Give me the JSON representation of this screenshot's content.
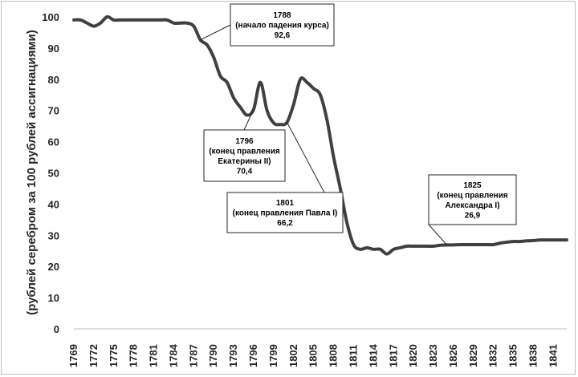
{
  "chart_data": {
    "type": "line",
    "ylabel": "(рублей серебром за 100 рублей ассигнациями)",
    "ylim": [
      0,
      100
    ],
    "yticks": [
      0,
      10,
      20,
      30,
      40,
      50,
      60,
      70,
      80,
      90,
      100
    ],
    "xlim": [
      1769,
      1843
    ],
    "xticks": [
      1769,
      1772,
      1775,
      1778,
      1781,
      1784,
      1787,
      1790,
      1793,
      1796,
      1799,
      1802,
      1805,
      1808,
      1811,
      1814,
      1817,
      1820,
      1823,
      1826,
      1829,
      1832,
      1835,
      1838,
      1841
    ],
    "grid": false,
    "legend": "none",
    "line_color": "#404040",
    "series": [
      {
        "x": [
          1769,
          1770,
          1771,
          1772,
          1773,
          1774,
          1775,
          1776,
          1777,
          1778,
          1779,
          1780,
          1781,
          1782,
          1783,
          1784,
          1785,
          1786,
          1787,
          1788,
          1789,
          1790,
          1791,
          1792,
          1793,
          1794,
          1795,
          1796,
          1797,
          1798,
          1799,
          1800,
          1801,
          1802,
          1803,
          1804,
          1805,
          1806,
          1807,
          1808,
          1809,
          1810,
          1811,
          1812,
          1813,
          1814,
          1815,
          1816,
          1817,
          1818,
          1819,
          1820,
          1821,
          1822,
          1823,
          1824,
          1825,
          1826,
          1827,
          1828,
          1829,
          1830,
          1831,
          1832,
          1833,
          1834,
          1835,
          1836,
          1837,
          1838,
          1839,
          1840,
          1841,
          1842,
          1843
        ],
        "y": [
          99,
          99,
          98,
          97,
          98,
          100,
          99,
          99,
          99,
          99,
          99,
          99,
          99,
          99,
          99,
          98,
          98,
          98,
          97,
          92.6,
          91,
          87,
          81,
          79,
          74,
          71,
          68.5,
          70.4,
          79,
          70,
          66,
          65.5,
          66.2,
          72,
          80,
          79,
          77,
          75,
          67,
          55,
          45,
          34,
          27,
          25.5,
          26,
          25.5,
          25.5,
          24,
          25.5,
          26,
          26.5,
          26.5,
          26.5,
          26.5,
          26.5,
          26.8,
          26.9,
          26.9,
          27,
          27,
          27,
          27,
          27,
          27,
          27.5,
          27.8,
          28,
          28,
          28.2,
          28.3,
          28.5,
          28.5,
          28.5,
          28.5,
          28.5
        ]
      }
    ],
    "annotations": [
      {
        "x": 1788,
        "y": 92.6,
        "lines": [
          "1788",
          "(начало падения курса)",
          "92,6"
        ]
      },
      {
        "x": 1796,
        "y": 70.4,
        "lines": [
          "1796",
          "(конец правления",
          "Екатерины II)",
          "70,4"
        ]
      },
      {
        "x": 1801,
        "y": 66.2,
        "lines": [
          "1801",
          "(конец правления  Павла I)",
          "66,2"
        ]
      },
      {
        "x": 1825,
        "y": 26.9,
        "lines": [
          "1825",
          "(конец правления",
          "Александра I)",
          "26,9"
        ]
      }
    ]
  }
}
